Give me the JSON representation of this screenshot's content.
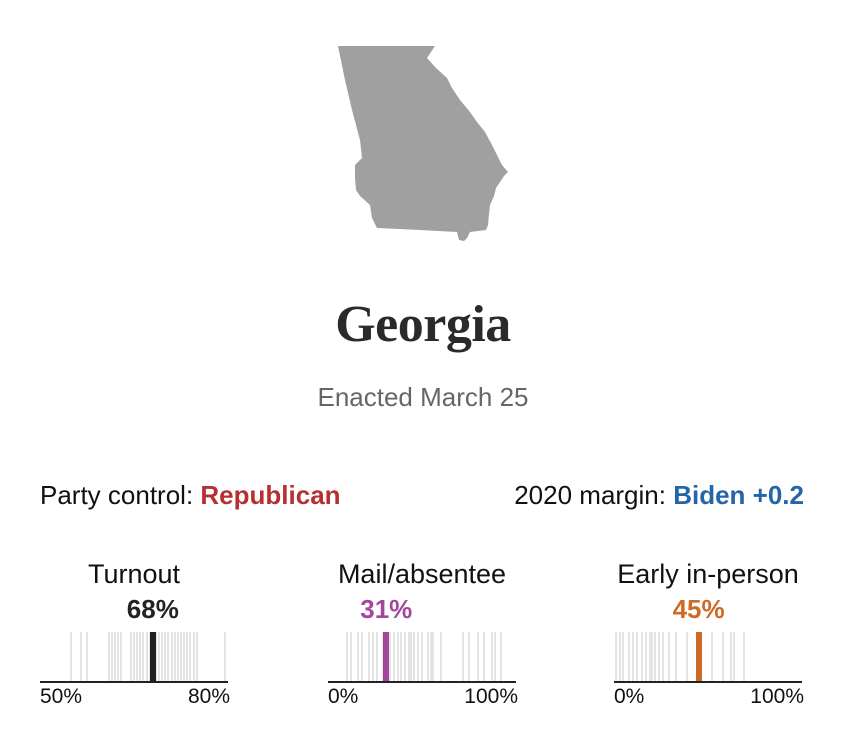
{
  "state": {
    "name": "Georgia",
    "enacted": "Enacted March 25",
    "map_fill": "#a0a0a0",
    "map_icon": "georgia-state-outline"
  },
  "summary": {
    "party_control_label": "Party control:",
    "party_control_value": "Republican",
    "party_color": "#b5302f",
    "margin_label": "2020 margin:",
    "margin_value": "Biden +0.2",
    "margin_color": "#2465a8"
  },
  "metrics": [
    {
      "label": "Turnout",
      "value_label": "68%",
      "value": 68,
      "color": "#222222",
      "min": 50,
      "max": 80,
      "min_label": "50%",
      "max_label": "80%"
    },
    {
      "label": "Mail/absentee",
      "value_label": "31%",
      "value": 31,
      "color": "#a2479c",
      "min": 0,
      "max": 100,
      "min_label": "0%",
      "max_label": "100%"
    },
    {
      "label": "Early in-person",
      "value_label": "45%",
      "value": 45,
      "color": "#cf6a25",
      "min": 0,
      "max": 100,
      "min_label": "0%",
      "max_label": "100%"
    }
  ],
  "chart_data": [
    {
      "type": "strip",
      "title": "Turnout",
      "highlight": {
        "label": "Georgia",
        "value": 68
      },
      "xlim": [
        50,
        80
      ],
      "tick_labels": [
        "50%",
        "80%"
      ],
      "other_values": [
        55,
        56.5,
        57.5,
        61,
        61.5,
        62,
        62.5,
        63,
        64.5,
        65,
        65.5,
        66,
        66.5,
        67,
        67.5,
        68.5,
        69,
        69.5,
        70,
        70.5,
        71,
        71.5,
        72,
        72.5,
        73,
        73.5,
        74,
        74.5,
        75,
        79.5
      ]
    },
    {
      "type": "strip",
      "title": "Mail/absentee",
      "highlight": {
        "label": "Georgia",
        "value": 31
      },
      "xlim": [
        0,
        100
      ],
      "tick_labels": [
        "0%",
        "100%"
      ],
      "other_values": [
        10,
        12,
        16,
        18,
        22,
        24,
        26,
        29,
        33,
        35,
        37,
        39,
        41,
        43,
        44,
        46,
        48,
        50,
        53,
        55,
        56,
        60,
        72,
        75,
        80,
        83,
        87,
        89,
        92
      ]
    },
    {
      "type": "strip",
      "title": "Early in-person",
      "highlight": {
        "label": "Georgia",
        "value": 45
      },
      "xlim": [
        0,
        100
      ],
      "tick_labels": [
        "0%",
        "100%"
      ],
      "other_values": [
        1,
        3,
        5,
        8,
        10,
        12,
        15,
        17,
        19,
        20,
        22,
        24,
        26,
        29,
        33,
        39,
        52,
        58,
        62,
        64,
        69
      ]
    }
  ]
}
